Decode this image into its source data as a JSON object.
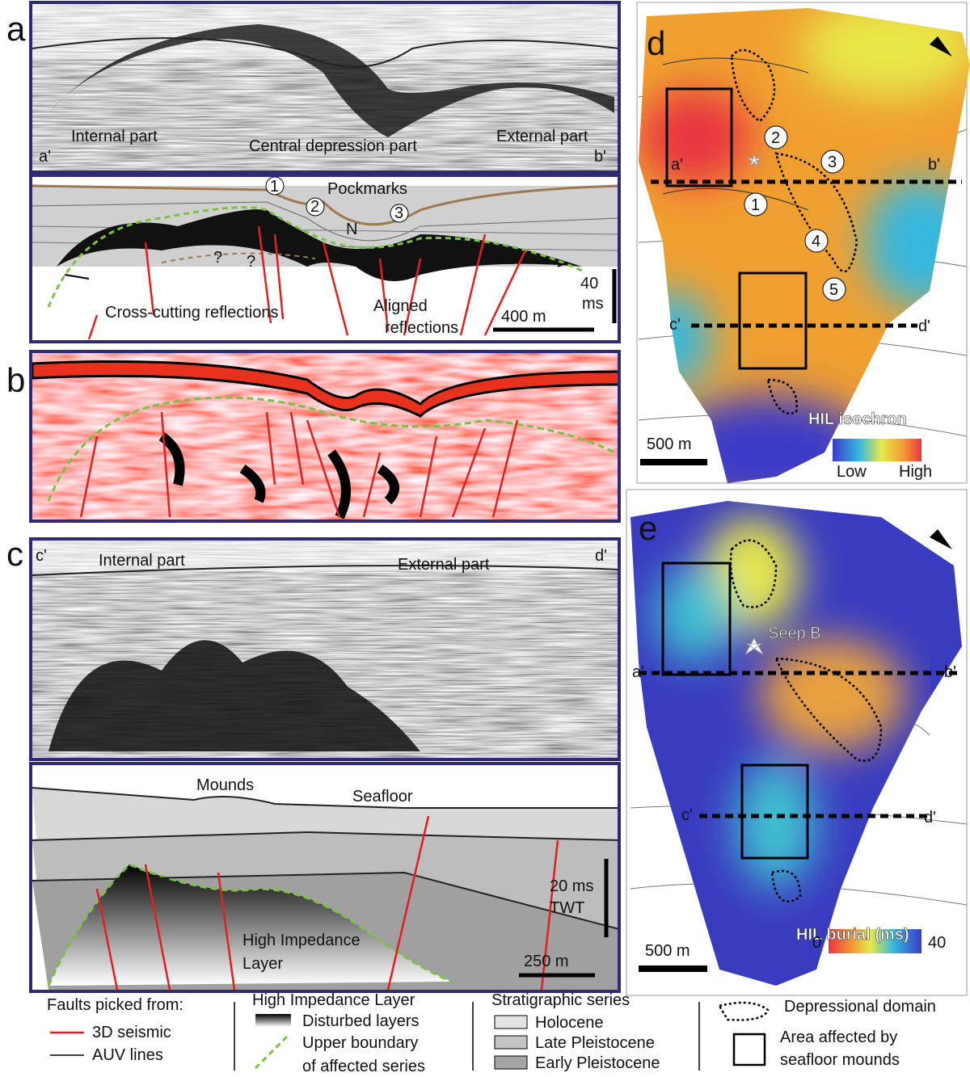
{
  "panel_a": {
    "letter": "a",
    "seismic": {
      "left": "a'",
      "right": "b'",
      "internal": "Internal part",
      "central": "Central depression part",
      "external": "External part"
    },
    "interpretation": {
      "pockmarks": "Pockmarks",
      "circles": [
        "1",
        "2",
        "3"
      ],
      "question_marks": [
        "?",
        "?"
      ],
      "n_label": "N",
      "cross_cutting": "Cross-cutting reflections",
      "aligned": [
        "Aligned",
        "reflections"
      ],
      "vertical_scale": [
        "40",
        "ms"
      ],
      "horizontal_scale": "400 m"
    }
  },
  "panel_b": {
    "letter": "b"
  },
  "panel_c": {
    "letter": "c",
    "seismic": {
      "left": "c'",
      "right": "d'",
      "internal": "Internal part",
      "external": "External part"
    },
    "interpretation": {
      "mounds": "Mounds",
      "seafloor": "Seafloor",
      "vertical_scale": [
        "20 ms",
        "TWT"
      ],
      "hil": [
        "High Impedance",
        "Layer"
      ],
      "horizontal_scale": "250 m"
    }
  },
  "panel_d": {
    "letter": "d",
    "profile_labels": [
      "a'",
      "b'",
      "c'",
      "d'"
    ],
    "circles": [
      "2",
      "3",
      "1",
      "4",
      "5"
    ],
    "legend_title": "HIL isochron",
    "scale": "500 m",
    "low": "Low",
    "high": "High"
  },
  "panel_e": {
    "letter": "e",
    "profile_labels": [
      "a'",
      "b'",
      "c'",
      "d'"
    ],
    "seep": "Seep B",
    "legend_title": "HIL burial (ms)",
    "scale": "500 m",
    "min": "0",
    "max": "40"
  },
  "legend": {
    "faults": {
      "title": "Faults picked from:",
      "items": [
        "3D seismic",
        "AUV lines"
      ]
    },
    "hil": {
      "title": "High Impedance Layer",
      "disturbed": "Disturbed layers",
      "upper": [
        "Upper boundary",
        "of affected series"
      ]
    },
    "strat": {
      "title": "Stratigraphic series",
      "items": [
        "Holocene",
        "Late Pleistocene",
        "Early Pleistocene"
      ]
    },
    "domains": {
      "depressional": "Depressional domain",
      "area": [
        "Area affected by",
        "seafloor mounds"
      ]
    }
  }
}
